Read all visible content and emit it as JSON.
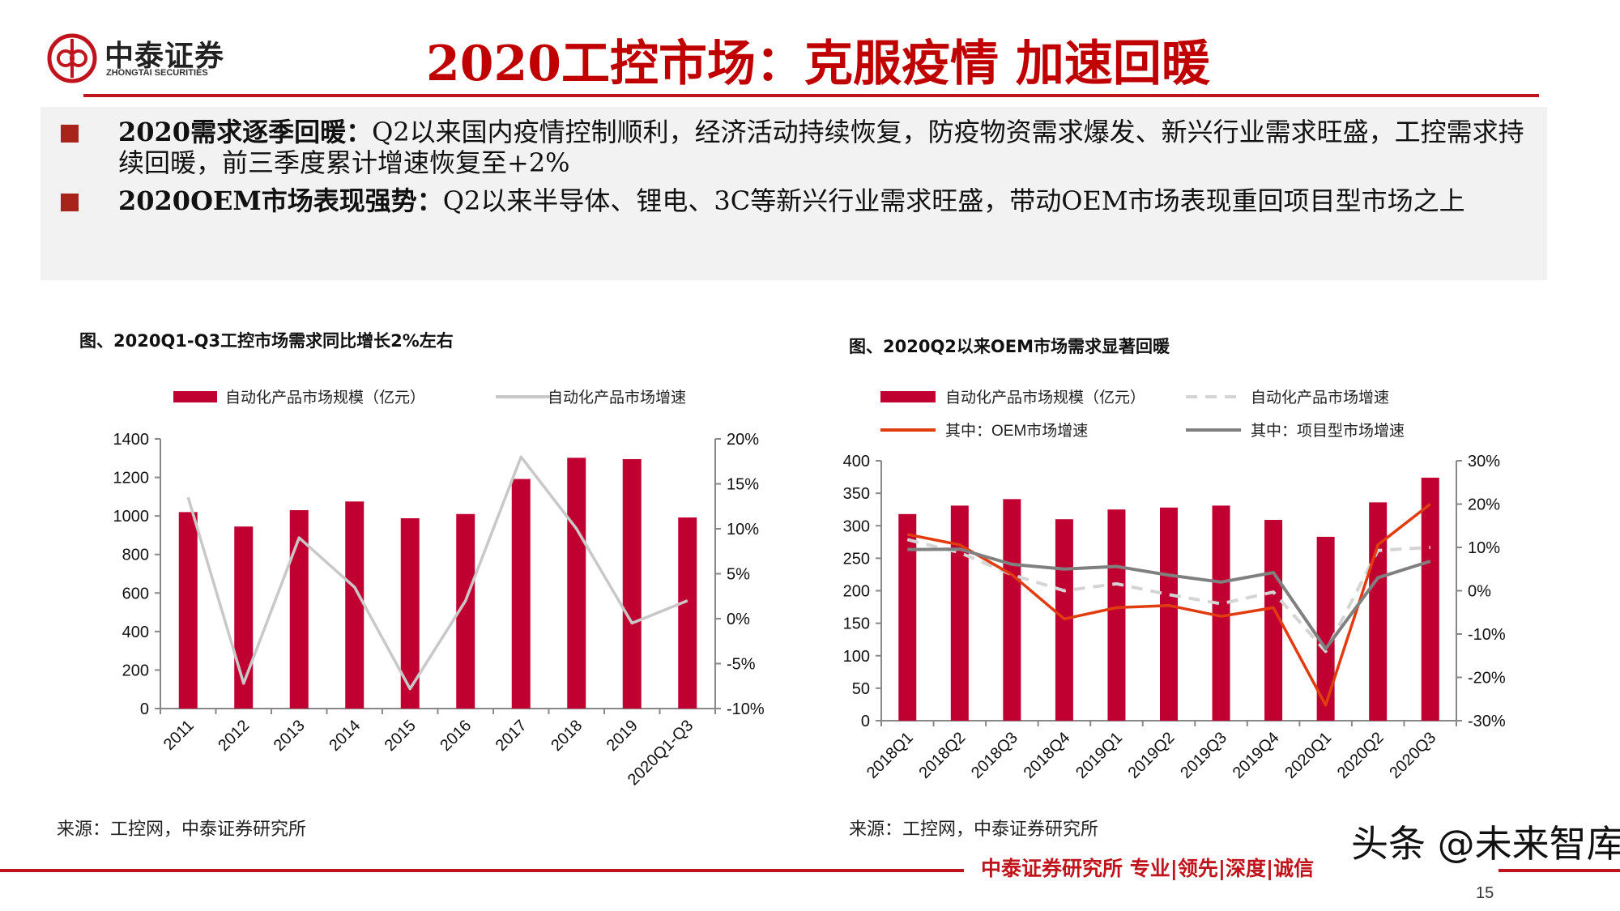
{
  "header": {
    "logo_cn": "中泰证券",
    "logo_en": "ZHONGTAI SECURITIES",
    "title": "2020工控市场：克服疫情 加速回暖"
  },
  "summary": {
    "bullets": [
      {
        "bold": "2020需求逐季回暖：",
        "text": "Q2以来国内疫情控制顺利，经济活动持续恢复，防疫物资需求爆发、新兴行业需求旺盛，工控需求持续回暖，前三季度累计增速恢复至+2%"
      },
      {
        "bold": "2020OEM市场表现强势：",
        "text": "Q2以来半导体、锂电、3C等新兴行业需求旺盛，带动OEM市场表现重回项目型市场之上"
      }
    ]
  },
  "colors": {
    "brand_red": "#c0141c",
    "bar": "#c00030",
    "growth_gray": "#c8c8c8",
    "oem_orange": "#e03c10",
    "project_gray": "#808080"
  },
  "chart_data": [
    {
      "type": "bar+line",
      "title": "图、2020Q1-Q3工控市场需求同比增长2%左右",
      "categories": [
        "2011",
        "2012",
        "2013",
        "2014",
        "2015",
        "2016",
        "2017",
        "2018",
        "2019",
        "2020Q1-Q3"
      ],
      "series": [
        {
          "name": "自动化产品市场规模（亿元）",
          "type": "bar",
          "axis": "left",
          "values": [
            1020,
            945,
            1030,
            1075,
            988,
            1010,
            1192,
            1302,
            1295,
            992
          ]
        },
        {
          "name": "自动化产品市场增速",
          "type": "line",
          "axis": "right",
          "style": "solid",
          "values": [
            13.5,
            -7.2,
            9.0,
            3.5,
            -7.8,
            2.0,
            18.0,
            10.0,
            -0.5,
            2.0
          ]
        }
      ],
      "y_left": {
        "range": [
          0,
          1400
        ],
        "ticks": [
          "0",
          "200",
          "400",
          "600",
          "800",
          "1000",
          "1200",
          "1400"
        ]
      },
      "y_right": {
        "range": [
          -10,
          20
        ],
        "ticks": [
          "-10%",
          "-5%",
          "0%",
          "5%",
          "10%",
          "15%",
          "20%"
        ]
      },
      "legend_position": "top",
      "grid": false,
      "source": "来源：工控网，中泰证券研究所"
    },
    {
      "type": "bar+line",
      "title": "图、2020Q2以来OEM市场需求显著回暖",
      "categories": [
        "2018Q1",
        "2018Q2",
        "2018Q3",
        "2018Q4",
        "2019Q1",
        "2019Q2",
        "2019Q3",
        "2019Q4",
        "2020Q1",
        "2020Q2",
        "2020Q3"
      ],
      "series": [
        {
          "name": "自动化产品市场规模（亿元）",
          "type": "bar",
          "axis": "left",
          "values": [
            318,
            331,
            341,
            310,
            325,
            328,
            331,
            309,
            283,
            336,
            374
          ]
        },
        {
          "name": "自动化产品市场增速",
          "type": "line",
          "axis": "right",
          "style": "dashed",
          "values": [
            11.8,
            8.8,
            3.7,
            0.0,
            1.6,
            -0.9,
            -3.0,
            -0.3,
            -14.0,
            9.3,
            10.0
          ]
        },
        {
          "name": "其中：OEM市场增速",
          "type": "line",
          "axis": "right",
          "style": "solid",
          "values": [
            13.0,
            10.6,
            3.7,
            -6.5,
            -3.9,
            -3.4,
            -5.9,
            -3.9,
            -26.4,
            10.6,
            20.0
          ]
        },
        {
          "name": "其中：项目型市场增速",
          "type": "line",
          "axis": "right",
          "style": "solid",
          "values": [
            9.5,
            9.6,
            6.1,
            5.0,
            5.6,
            3.6,
            2.0,
            4.2,
            -13.4,
            3.0,
            6.8
          ]
        }
      ],
      "y_left": {
        "range": [
          0,
          400
        ],
        "ticks": [
          "0",
          "50",
          "100",
          "150",
          "200",
          "250",
          "300",
          "350",
          "400"
        ]
      },
      "y_right": {
        "range": [
          -30,
          30
        ],
        "ticks": [
          "-30%",
          "-20%",
          "-10%",
          "0%",
          "10%",
          "20%",
          "30%"
        ]
      },
      "legend_position": "top",
      "grid": false,
      "source": "来源：工控网，中泰证券研究所"
    }
  ],
  "footer": {
    "tagline": "中泰证券研究所 专业|领先|深度|诚信",
    "page_number": "15",
    "watermark": "头条 @未来智库"
  }
}
